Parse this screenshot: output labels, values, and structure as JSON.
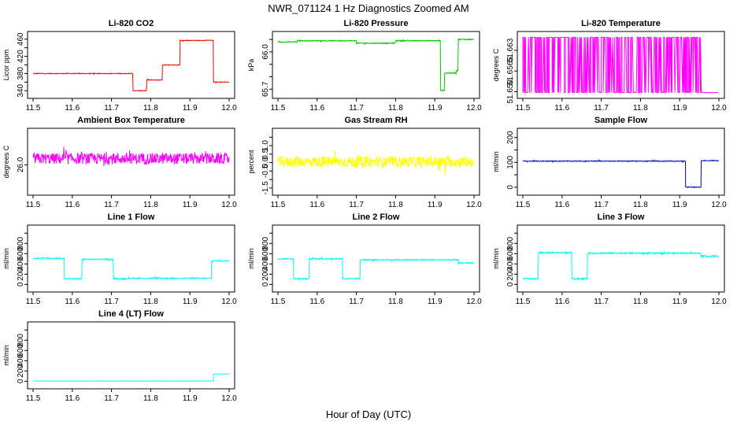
{
  "figure_title": "NWR_071124  1 Hz Diagnostics Zoomed AM",
  "xlabel": "Hour of Day (UTC)",
  "chart_data": [
    {
      "type": "line",
      "title": "Li-820 CO2",
      "ylabel": "Licor ppm",
      "color": "#ff0000",
      "xlim": [
        11.5,
        12.0
      ],
      "xticks": [
        11.5,
        11.6,
        11.7,
        11.8,
        11.9,
        12.0
      ],
      "ylim": [
        335,
        465
      ],
      "yticks": [
        340,
        360,
        380,
        400,
        420,
        440,
        460
      ],
      "yticklabels": [
        "340",
        "",
        "380",
        "",
        "420",
        "",
        "460"
      ],
      "noise": 0.8,
      "segments": [
        [
          11.5,
          11.755,
          380
        ],
        [
          11.755,
          11.79,
          340
        ],
        [
          11.79,
          11.83,
          365
        ],
        [
          11.83,
          11.875,
          400
        ],
        [
          11.875,
          11.96,
          457
        ],
        [
          11.96,
          12.0,
          360
        ]
      ]
    },
    {
      "type": "line",
      "title": "Li-820 Pressure",
      "ylabel": "kPa",
      "color": "#00cc00",
      "xlim": [
        11.5,
        12.0
      ],
      "xticks": [
        11.5,
        11.6,
        11.7,
        11.8,
        11.9,
        12.0
      ],
      "ylim": [
        65.67,
        66.12
      ],
      "yticks": [
        65.7,
        65.8,
        65.9,
        66.0,
        66.1
      ],
      "yticklabels": [
        "65.7",
        "",
        "",
        "66.0",
        ""
      ],
      "noise": 0.004,
      "segments": [
        [
          11.5,
          11.55,
          66.08
        ],
        [
          11.55,
          11.7,
          66.09
        ],
        [
          11.7,
          11.8,
          66.07
        ],
        [
          11.8,
          11.9,
          66.09
        ],
        [
          11.9,
          11.915,
          66.09
        ],
        [
          11.915,
          11.925,
          65.69
        ],
        [
          11.925,
          11.955,
          65.83
        ],
        [
          11.955,
          11.96,
          65.85
        ],
        [
          11.96,
          12.0,
          66.1
        ]
      ]
    },
    {
      "type": "line",
      "title": "Li-820 Temperature",
      "ylabel": "degrees C",
      "color": "#ff00ff",
      "xlim": [
        11.5,
        12.0
      ],
      "xticks": [
        11.5,
        11.6,
        11.7,
        11.8,
        11.9,
        12.0
      ],
      "ylim": [
        51.6496,
        51.6672
      ],
      "yticks": [
        51.65,
        51.6565,
        51.663
      ],
      "yticklabels": [
        "51.650",
        "51.6565",
        "51.663"
      ],
      "noise": 0,
      "segments": [
        [
          11.5,
          11.955,
          "binary",
          51.6497,
          51.6671
        ],
        [
          11.955,
          12.0,
          51.6497
        ]
      ]
    },
    {
      "type": "line",
      "title": "Ambient Box Temperature",
      "ylabel": "degrees C",
      "color": "#ff00ff",
      "xlim": [
        11.5,
        12.0
      ],
      "xticks": [
        11.5,
        11.6,
        11.7,
        11.8,
        11.9,
        12.0
      ],
      "ylim": [
        25.6,
        26.5
      ],
      "yticks": [
        26.0
      ],
      "yticklabels": [
        "26.0"
      ],
      "noise": 0.09,
      "segments": [
        [
          11.5,
          12.0,
          26.1
        ]
      ]
    },
    {
      "type": "line",
      "title": "Gas Stream RH",
      "ylabel": "percent",
      "color": "#ffff00",
      "xlim": [
        11.5,
        12.0
      ],
      "xticks": [
        11.5,
        11.6,
        11.7,
        11.8,
        11.9,
        12.0
      ],
      "ylim": [
        -1.6,
        1.7
      ],
      "yticks": [
        -1.5,
        -1.0,
        -0.5,
        0.0,
        0.5,
        1.0,
        1.5
      ],
      "yticklabels": [
        "-1.5",
        "",
        "-0.5",
        "0.0",
        "0.5",
        "1.0",
        ""
      ],
      "noise": 0.32,
      "segments": [
        [
          11.5,
          12.0,
          0.05
        ]
      ]
    },
    {
      "type": "line",
      "title": "Sample Flow",
      "ylabel": "ml/min",
      "color": "#0000cc",
      "xlim": [
        11.5,
        12.0
      ],
      "xticks": [
        11.5,
        11.6,
        11.7,
        11.8,
        11.9,
        12.0
      ],
      "ylim": [
        -10,
        215
      ],
      "yticks": [
        0,
        50,
        100,
        150,
        200
      ],
      "yticklabels": [
        "0",
        "",
        "100",
        "",
        "200"
      ],
      "noise": 1.5,
      "segments": [
        [
          11.5,
          11.915,
          105
        ],
        [
          11.915,
          11.955,
          0
        ],
        [
          11.955,
          12.0,
          107
        ]
      ]
    },
    {
      "type": "line",
      "title": "Line 1 Flow",
      "ylabel": "ml/min",
      "color": "#00ffff",
      "xlim": [
        11.5,
        12.0
      ],
      "xticks": [
        11.5,
        11.6,
        11.7,
        11.8,
        11.9,
        12.0
      ],
      "ylim": [
        -40,
        1050
      ],
      "yticks": [
        0,
        200,
        400,
        600,
        800,
        1000
      ],
      "yticklabels": [
        "0",
        "200",
        "400",
        "600",
        "800",
        ""
      ],
      "noise": 12,
      "segments": [
        [
          11.5,
          11.58,
          510
        ],
        [
          11.58,
          11.625,
          110
        ],
        [
          11.625,
          11.705,
          490
        ],
        [
          11.705,
          11.745,
          110
        ],
        [
          11.745,
          11.955,
          120
        ],
        [
          11.955,
          12.0,
          460
        ]
      ]
    },
    {
      "type": "line",
      "title": "Line 2 Flow",
      "ylabel": "ml/min",
      "color": "#00ffff",
      "xlim": [
        11.5,
        12.0
      ],
      "xticks": [
        11.5,
        11.6,
        11.7,
        11.8,
        11.9,
        12.0
      ],
      "ylim": [
        -40,
        1050
      ],
      "yticks": [
        0,
        200,
        400,
        600,
        800,
        1000
      ],
      "yticklabels": [
        "0",
        "200",
        "400",
        "600",
        "800",
        ""
      ],
      "noise": 12,
      "segments": [
        [
          11.5,
          11.54,
          500
        ],
        [
          11.54,
          11.58,
          110
        ],
        [
          11.58,
          11.665,
          500
        ],
        [
          11.665,
          11.71,
          110
        ],
        [
          11.71,
          11.96,
          480
        ],
        [
          11.96,
          12.0,
          420
        ]
      ]
    },
    {
      "type": "line",
      "title": "Line 3 Flow",
      "ylabel": "ml/min",
      "color": "#00ffff",
      "xlim": [
        11.5,
        12.0
      ],
      "xticks": [
        11.5,
        11.6,
        11.7,
        11.8,
        11.9,
        12.0
      ],
      "ylim": [
        -40,
        1050
      ],
      "yticks": [
        0,
        200,
        400,
        600,
        800,
        1000
      ],
      "yticklabels": [
        "0",
        "200",
        "400",
        "600",
        "800",
        ""
      ],
      "noise": 15,
      "segments": [
        [
          11.5,
          11.54,
          110
        ],
        [
          11.54,
          11.625,
          620
        ],
        [
          11.625,
          11.665,
          110
        ],
        [
          11.665,
          11.955,
          610
        ],
        [
          11.955,
          12.0,
          550
        ]
      ]
    },
    {
      "type": "line",
      "title": "Line 4 (LT) Flow",
      "ylabel": "ml/min",
      "color": "#00ffff",
      "xlim": [
        11.5,
        12.0
      ],
      "xticks": [
        11.5,
        11.6,
        11.7,
        11.8,
        11.9,
        12.0
      ],
      "ylim": [
        -40,
        1050
      ],
      "yticks": [
        0,
        200,
        400,
        600,
        800,
        1000
      ],
      "yticklabels": [
        "0",
        "200",
        "400",
        "600",
        "800",
        ""
      ],
      "noise": 2,
      "segments": [
        [
          11.5,
          11.96,
          5
        ],
        [
          11.96,
          12.0,
          140
        ]
      ]
    }
  ]
}
